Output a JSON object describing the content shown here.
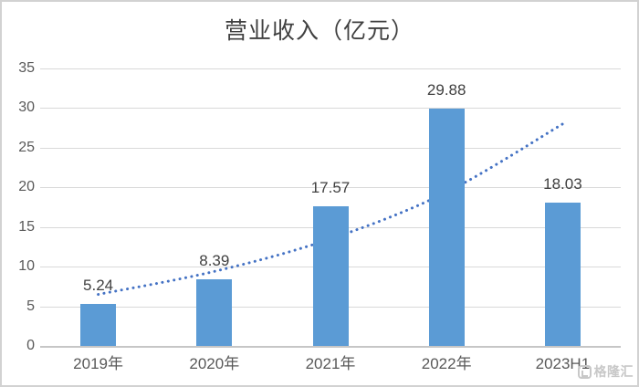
{
  "title": "营业收入（亿元）",
  "watermark": {
    "logo": "G",
    "text": "格隆汇"
  },
  "colors": {
    "bar": "#5b9bd5",
    "trendline": "#4472c4",
    "gridline": "#d9d9d9",
    "axis_line": "#c6c6c6",
    "axis_text": "#595959",
    "label_text": "#404040",
    "watermark": "#c8c8c8",
    "border": "#d2d2d2"
  },
  "chart_data": {
    "type": "bar",
    "title": "营业收入（亿元）",
    "categories": [
      "2019年",
      "2020年",
      "2021年",
      "2022年",
      "2023H1"
    ],
    "values": [
      5.24,
      8.39,
      17.57,
      29.88,
      18.03
    ],
    "data_labels": [
      "5.24",
      "8.39",
      "17.57",
      "29.88",
      "18.03"
    ],
    "xlabel": "",
    "ylabel": "",
    "ylim": [
      0,
      35
    ],
    "yticks": [
      0,
      5,
      10,
      15,
      20,
      25,
      30,
      35
    ],
    "grid": true,
    "legend": "none",
    "trendline": {
      "type": "exponential",
      "style": "dotted",
      "values_at_categories": [
        6.5,
        9.4,
        13.5,
        19.4,
        28.0
      ]
    }
  }
}
